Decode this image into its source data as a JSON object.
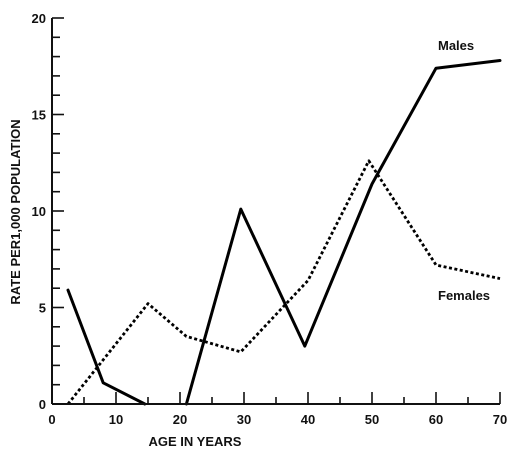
{
  "chart_data": {
    "type": "line",
    "title": "",
    "xlabel": "AGE IN YEARS",
    "ylabel": "RATE PER1,000 POPULATION",
    "xlim": [
      0,
      70
    ],
    "ylim": [
      0,
      20
    ],
    "x_ticks": [
      0,
      10,
      20,
      30,
      40,
      50,
      60,
      70
    ],
    "y_ticks": [
      0,
      5,
      10,
      15,
      20
    ],
    "x_tick_labels": [
      "0",
      "10",
      "20",
      "30",
      "40",
      "50",
      "60",
      "70"
    ],
    "y_tick_labels": [
      "0",
      "5",
      "10",
      "15",
      "20"
    ],
    "grid": false,
    "series": [
      {
        "name": "Males",
        "style": "solid",
        "color": "#000000",
        "segments": [
          [
            [
              2.5,
              5.9
            ],
            [
              8,
              1.1
            ],
            [
              14.5,
              0
            ]
          ],
          [
            [
              21,
              0
            ],
            [
              29.5,
              10.1
            ],
            [
              39.5,
              3.0
            ],
            [
              50,
              11.4
            ],
            [
              60,
              17.4
            ],
            [
              70,
              17.8
            ]
          ]
        ]
      },
      {
        "name": "Females",
        "style": "dotted",
        "color": "#000000",
        "segments": [
          [
            [
              2.5,
              0
            ],
            [
              15,
              5.2
            ],
            [
              21,
              3.5
            ],
            [
              29.5,
              2.7
            ],
            [
              40,
              6.4
            ],
            [
              49.5,
              12.6
            ],
            [
              60,
              7.2
            ],
            [
              70,
              6.5
            ]
          ]
        ]
      }
    ]
  }
}
